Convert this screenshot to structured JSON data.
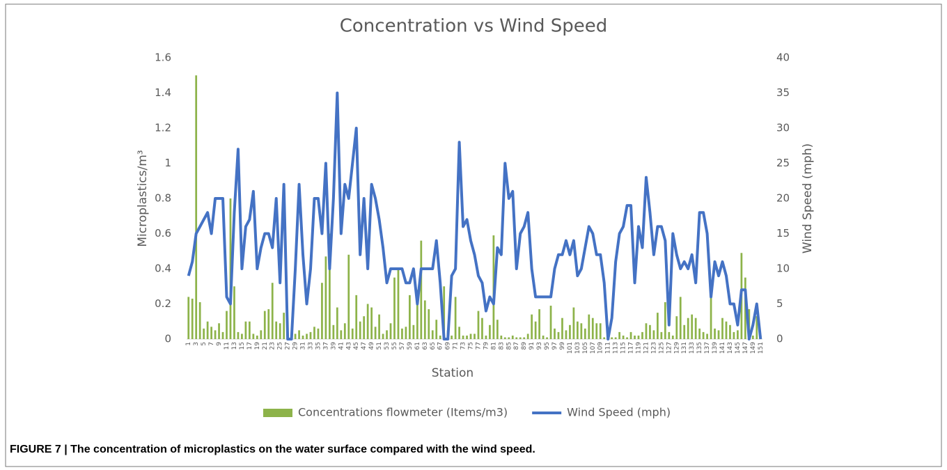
{
  "chart_data": {
    "type": "bar",
    "title": "Concentration vs Wind Speed",
    "xlabel": "Station",
    "ylabel": "Microplastics/m³",
    "y2label": "Wind Speed (mph)",
    "caption": "FIGURE 7 | The concentration of microplastics on the water surface compared with the wind speed.",
    "categories": [
      "1",
      null,
      "3",
      null,
      "5",
      null,
      "7",
      null,
      "9",
      null,
      "11",
      null,
      "13",
      null,
      "15",
      null,
      "17",
      null,
      "19",
      null,
      "21",
      null,
      "23",
      null,
      "25",
      null,
      "27",
      null,
      "29",
      null,
      "31",
      null,
      "33",
      null,
      "35",
      null,
      "37",
      null,
      "39",
      null,
      "41",
      null,
      "43",
      null,
      "45",
      null,
      "47",
      null,
      "49",
      null,
      "51",
      null,
      "53",
      null,
      "55",
      null,
      "57",
      null,
      "59",
      null,
      "61",
      null,
      "63",
      null,
      "65",
      null,
      "67",
      null,
      "69",
      null,
      "71",
      null,
      "73",
      null,
      "75",
      null,
      "77",
      null,
      "79",
      null,
      "81",
      null,
      "83",
      null,
      "85",
      null,
      "87",
      null,
      "89",
      null,
      "91",
      null,
      "93",
      null,
      "95",
      null,
      "97",
      null,
      "99",
      null,
      "101",
      null,
      "103",
      null,
      "105",
      null,
      "107",
      null,
      "109",
      null,
      "111",
      null,
      "113",
      null,
      "115",
      null,
      "117",
      null,
      "119",
      null,
      "121",
      null,
      "123",
      null,
      "125",
      null,
      "127",
      null,
      "129",
      null,
      "131",
      null,
      "133",
      null,
      "135",
      null,
      "137",
      null,
      "139",
      null,
      "141",
      null,
      "143",
      null,
      "145",
      null,
      "147",
      null,
      "149",
      null,
      "151"
    ],
    "series": [
      {
        "name": "Concentrations flowmeter (Items/m3)",
        "type": "bar",
        "color": "#8db34a",
        "values": [
          0.24,
          0.23,
          1.5,
          0.21,
          0.06,
          0.1,
          0.07,
          0.05,
          0.09,
          0.04,
          0.16,
          0.8,
          0.3,
          0.04,
          0.03,
          0.1,
          0.1,
          0.03,
          0.02,
          0.05,
          0.16,
          0.17,
          0.32,
          0.1,
          0.09,
          0.15,
          0.03,
          0.01,
          0.03,
          0.05,
          0.02,
          0.03,
          0.04,
          0.07,
          0.06,
          0.32,
          0.47,
          0.6,
          0.08,
          0.18,
          0.05,
          0.09,
          0.48,
          0.06,
          0.25,
          0.1,
          0.13,
          0.2,
          0.18,
          0.07,
          0.14,
          0.03,
          0.05,
          0.09,
          0.35,
          0.4,
          0.06,
          0.07,
          0.25,
          0.08,
          0.28,
          0.56,
          0.22,
          0.17,
          0.05,
          0.11,
          0.02,
          0.3,
          0.05,
          0.02,
          0.24,
          0.07,
          0.02,
          0.02,
          0.03,
          0.03,
          0.16,
          0.12,
          0.02,
          0.08,
          0.59,
          0.11,
          0.02,
          0.01,
          0.01,
          0.02,
          0.01,
          0.01,
          0.01,
          0.03,
          0.14,
          0.1,
          0.17,
          0.02,
          0.01,
          0.19,
          0.06,
          0.04,
          0.12,
          0.05,
          0.08,
          0.18,
          0.1,
          0.09,
          0.06,
          0.14,
          0.12,
          0.09,
          0.09,
          0.01,
          0.01,
          0.01,
          0.01,
          0.04,
          0.02,
          0.01,
          0.04,
          0.02,
          0.02,
          0.04,
          0.09,
          0.08,
          0.05,
          0.15,
          0.04,
          0.21,
          0.04,
          0.02,
          0.13,
          0.24,
          0.08,
          0.12,
          0.14,
          0.12,
          0.06,
          0.04,
          0.03,
          0.3,
          0.06,
          0.05,
          0.12,
          0.1,
          0.08,
          0.04,
          0.05,
          0.49,
          0.35,
          0.17,
          0.02,
          0.13,
          0.02
        ]
      },
      {
        "name": "Wind Speed (mph)",
        "type": "line",
        "axis": "y2",
        "color": "#4472c4",
        "values": [
          9,
          11,
          15,
          16,
          17,
          18,
          15,
          20,
          20,
          20,
          6,
          5,
          18,
          27,
          10,
          16,
          17,
          21,
          10,
          13,
          15,
          15,
          13,
          20,
          8,
          22,
          0,
          0,
          10,
          22,
          12,
          5,
          10,
          20,
          20,
          15,
          25,
          10,
          20,
          35,
          15,
          22,
          20,
          25,
          30,
          12,
          20,
          10,
          22,
          20,
          17,
          13,
          8,
          10,
          10,
          10,
          10,
          8,
          8,
          10,
          5,
          10,
          10,
          10,
          10,
          14,
          8,
          0,
          0,
          9,
          10,
          28,
          16,
          17,
          14,
          12,
          9,
          8,
          4,
          6,
          5,
          13,
          12,
          25,
          20,
          21,
          10,
          15,
          16,
          18,
          10,
          6,
          6,
          6,
          6,
          6,
          10,
          12,
          12,
          14,
          12,
          14,
          9,
          10,
          13,
          16,
          15,
          12,
          12,
          8,
          0,
          3,
          11,
          15,
          16,
          19,
          19,
          8,
          16,
          13,
          23,
          18,
          12,
          16,
          16,
          14,
          2,
          15,
          12,
          10,
          11,
          10,
          12,
          8,
          18,
          18,
          15,
          6,
          11,
          9,
          11,
          9,
          5,
          5,
          2,
          7,
          7,
          0,
          2,
          5,
          0
        ]
      }
    ],
    "ylim": [
      0,
      1.6
    ],
    "yticks": [
      0,
      0.2,
      0.4,
      0.6,
      0.8,
      1,
      1.2,
      1.4,
      1.6
    ],
    "y2lim": [
      0,
      40
    ],
    "y2ticks": [
      0,
      5,
      10,
      15,
      20,
      25,
      30,
      35,
      40
    ],
    "legend": "bottom",
    "grid": false
  }
}
